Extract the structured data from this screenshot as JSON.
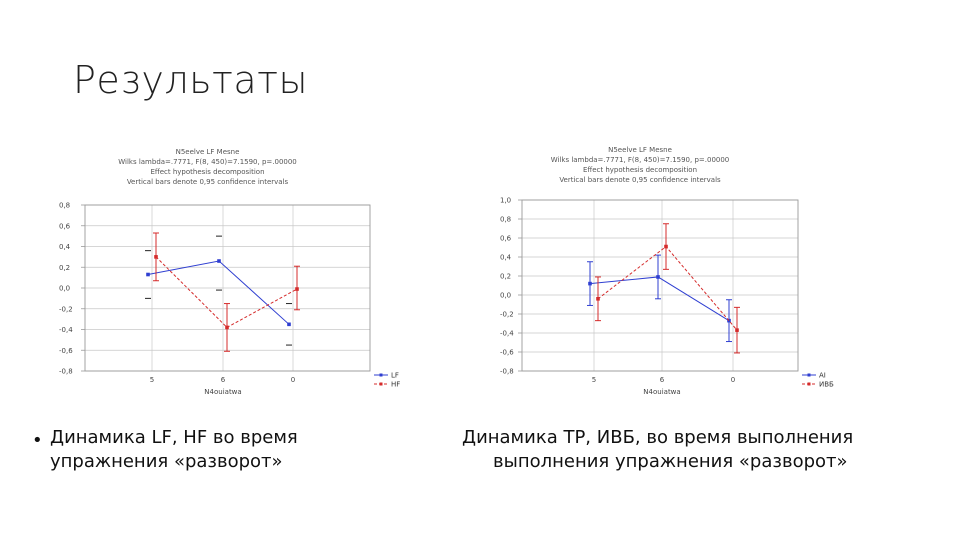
{
  "slide": {
    "title": "Результаты",
    "bullet_glyph": "•",
    "caption_left_line1": "Динамика LF, HF во время",
    "caption_left_line2": "упражнения «разворот»",
    "caption_right_line1": "Динамика ТР, ИВБ, во время выполнения",
    "caption_right_line2": "выполнения упражнения «разворот»"
  },
  "colors": {
    "series_blue": "#2f3fd1",
    "series_red": "#d52b2b",
    "grid": "#c8c8c8",
    "frame": "#9a9a9a",
    "header_text": "#555555"
  },
  "chart_data": [
    {
      "type": "line",
      "header_lines": [
        "N5eelve LF Mesne",
        "Wilks lambda=.7771, F(8, 450)=7.1590, p=.00000",
        "Effect hypothesis decomposition",
        "Vertical bars denote 0,95 confidence intervals"
      ],
      "xlabel": "N4ouiatwa",
      "categories": [
        "5",
        "6",
        "0"
      ],
      "ylim": [
        -0.8,
        0.8
      ],
      "yticks": [
        -0.8,
        -0.6,
        -0.4,
        -0.2,
        0.0,
        0.2,
        0.4,
        0.6,
        0.8
      ],
      "ytick_labels": [
        "-0,8",
        "-0,6",
        "-0,4",
        "-0,2",
        "0,0",
        "0,2",
        "0,4",
        "0,6",
        "0,8"
      ],
      "grid": true,
      "legend_position": "bottom-right",
      "series": [
        {
          "name": "LF",
          "color": "#2f3fd1",
          "style": "solid",
          "values": [
            0.13,
            0.26,
            -0.35
          ],
          "lower": [
            -0.1,
            -0.02,
            -0.55
          ],
          "upper": [
            0.36,
            0.5,
            -0.15
          ]
        },
        {
          "name": "HF",
          "color": "#d52b2b",
          "style": "dashed",
          "values": [
            0.3,
            -0.38,
            -0.01
          ],
          "lower": [
            0.07,
            -0.61,
            -0.21
          ],
          "upper": [
            0.53,
            -0.15,
            0.21
          ]
        }
      ]
    },
    {
      "type": "line",
      "header_lines": [
        "N5eelve LF Mesne",
        "Wilks lambda=.7771, F(8, 450)=7.1590, p=.00000",
        "Effect hypothesis decomposition",
        "Vertical bars denote 0,95 confidence intervals"
      ],
      "xlabel": "N4ouiatwa",
      "categories": [
        "5",
        "6",
        "0"
      ],
      "ylim": [
        -0.8,
        1.0
      ],
      "yticks": [
        -0.8,
        -0.6,
        -0.4,
        -0.2,
        0.0,
        0.2,
        0.4,
        0.6,
        0.8,
        1.0
      ],
      "ytick_labels": [
        "-0,8",
        "-0,6",
        "-0,4",
        "-0,2",
        "0,0",
        "0,2",
        "0,4",
        "0,6",
        "0,8",
        "1,0"
      ],
      "grid": true,
      "legend_position": "bottom-right",
      "series": [
        {
          "name": "AI",
          "color": "#2f3fd1",
          "style": "solid",
          "values": [
            0.12,
            0.19,
            -0.27
          ],
          "lower": [
            -0.11,
            -0.04,
            -0.49
          ],
          "upper": [
            0.35,
            0.42,
            -0.05
          ]
        },
        {
          "name": "ИВБ",
          "color": "#d52b2b",
          "style": "dashed",
          "values": [
            -0.04,
            0.51,
            -0.37
          ],
          "lower": [
            -0.27,
            0.27,
            -0.61
          ],
          "upper": [
            0.19,
            0.75,
            -0.13
          ]
        }
      ]
    }
  ]
}
